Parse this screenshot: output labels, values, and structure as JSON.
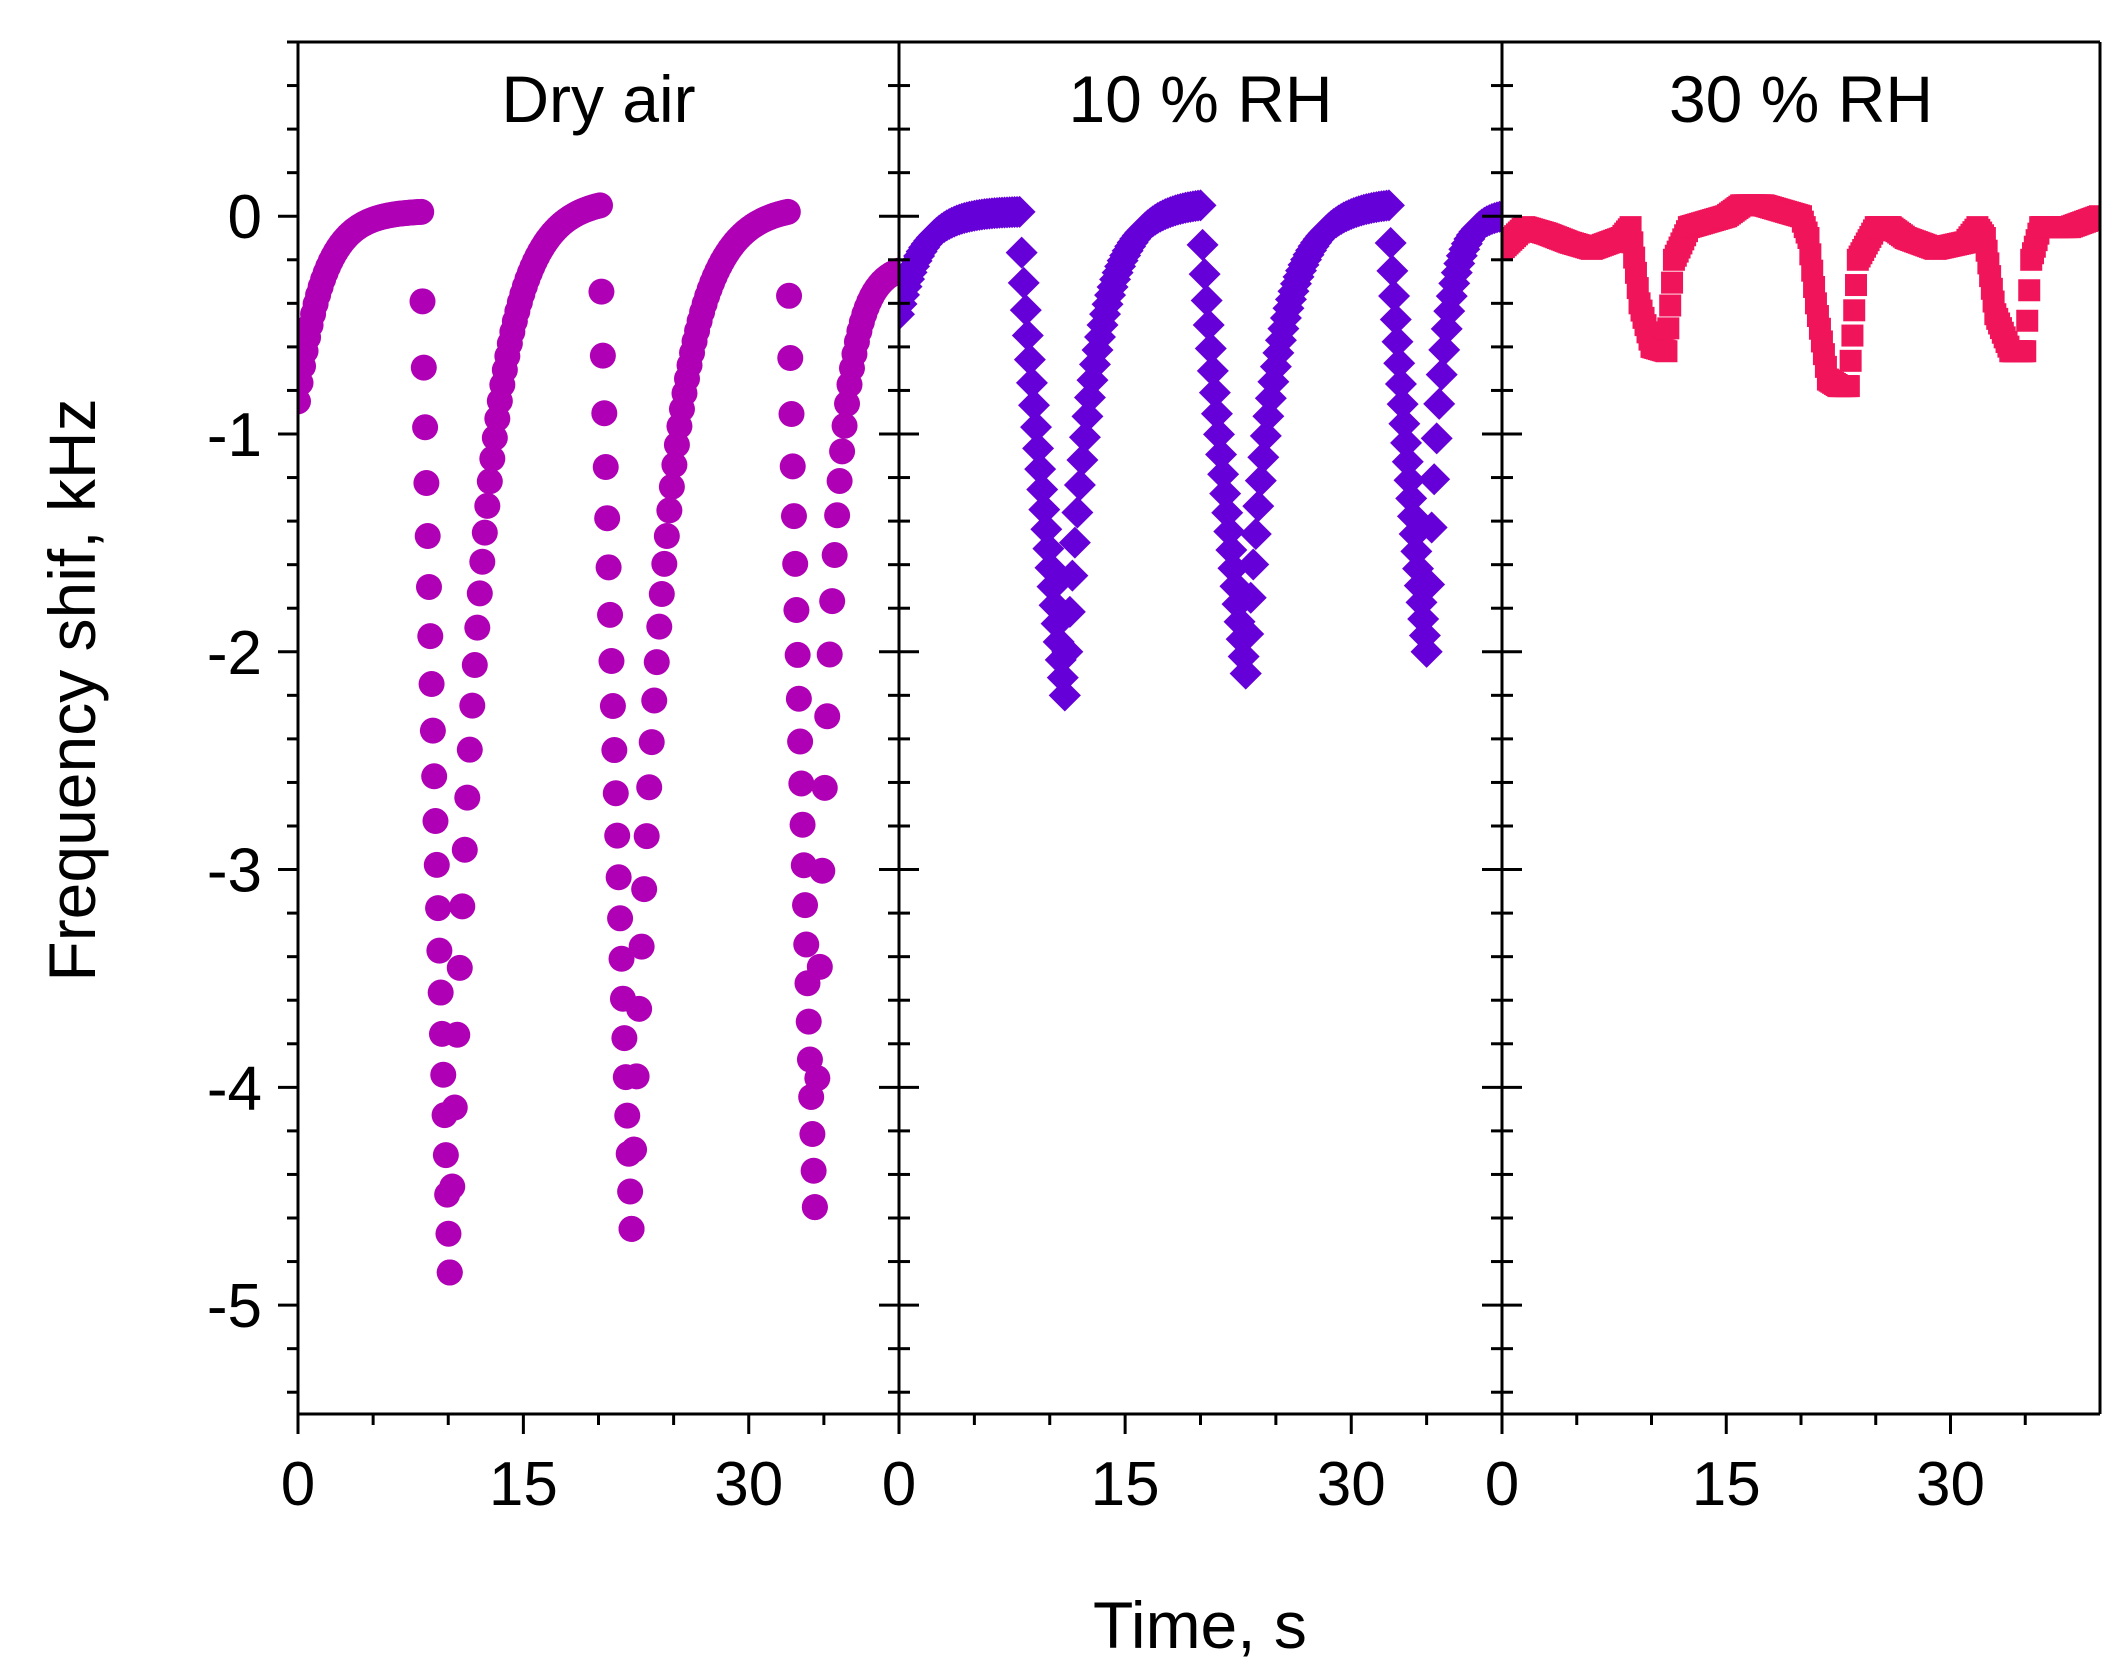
{
  "chart_data": {
    "type": "scatter",
    "xlabel": "Time, s",
    "ylabel": "Frequency shif, kHz",
    "ylim": [
      -5.5,
      0.8
    ],
    "yticks": [
      0,
      -1,
      -2,
      -3,
      -4,
      -5
    ],
    "ytick_labels": [
      "0",
      "-1",
      "-2",
      "-3",
      "-4",
      "-5"
    ],
    "panels": [
      {
        "title": "Dry air",
        "xlim": [
          0,
          40
        ],
        "xticks": [
          0,
          15,
          30
        ],
        "xtick_labels": [
          "0",
          "15",
          "30"
        ],
        "series": {
          "name": "Dry air",
          "marker": "circle",
          "color": "#B000B5",
          "cycles": [
            {
              "start": 0.0,
              "start_value": -0.85,
              "top_time": 8.2,
              "top_value": 0.02,
              "dip_time": 10.1,
              "dip_value": -4.85
            },
            {
              "start": 10.1,
              "start_value": -4.85,
              "top_time": 20.1,
              "top_value": 0.05,
              "dip_time": 22.2,
              "dip_value": -4.65
            },
            {
              "start": 22.2,
              "start_value": -4.65,
              "top_time": 32.6,
              "top_value": 0.02,
              "dip_time": 34.4,
              "dip_value": -4.55
            },
            {
              "start": 34.4,
              "start_value": -4.55,
              "top_time": 40.0,
              "top_value": -0.25
            }
          ]
        }
      },
      {
        "title": "10 % RH",
        "xlim": [
          0,
          40
        ],
        "xticks": [
          0,
          15,
          30
        ],
        "xtick_labels": [
          "0",
          "15",
          "30"
        ],
        "series": {
          "name": "10 % RH",
          "marker": "diamond",
          "color": "#6600D9",
          "cycles": [
            {
              "start": 0.0,
              "start_value": -0.45,
              "top_time": 8.0,
              "top_value": 0.02,
              "dip_time": 11.0,
              "dip_value": -2.2
            },
            {
              "start": 11.0,
              "start_value": -2.2,
              "top_time": 20.0,
              "top_value": 0.05,
              "dip_time": 23.0,
              "dip_value": -2.1
            },
            {
              "start": 23.0,
              "start_value": -2.1,
              "top_time": 32.5,
              "top_value": 0.05,
              "dip_time": 35.0,
              "dip_value": -2.0
            },
            {
              "start": 35.0,
              "start_value": -2.0,
              "top_time": 40.0,
              "top_value": 0.0
            }
          ]
        }
      },
      {
        "title": "30 % RH",
        "xlim": [
          0,
          40
        ],
        "xticks": [
          0,
          15,
          30
        ],
        "xtick_labels": [
          "0",
          "15",
          "30"
        ],
        "series": {
          "name": "30 % RH",
          "marker": "square",
          "color": "#F0145A",
          "points": [
            [
              0,
              -0.15
            ],
            [
              1.5,
              -0.05
            ],
            [
              3,
              -0.08
            ],
            [
              4.5,
              -0.12
            ],
            [
              6,
              -0.15
            ],
            [
              8,
              -0.1
            ],
            [
              8.6,
              -0.05
            ],
            [
              9.2,
              -0.4
            ],
            [
              10,
              -0.6
            ],
            [
              11,
              -0.62
            ],
            [
              11.5,
              -0.2
            ],
            [
              12.5,
              -0.05
            ],
            [
              15,
              0.0
            ],
            [
              16,
              0.05
            ],
            [
              17.5,
              0.05
            ],
            [
              19,
              0.02
            ],
            [
              20,
              0.0
            ],
            [
              20.5,
              -0.1
            ],
            [
              21,
              -0.4
            ],
            [
              21.8,
              -0.75
            ],
            [
              22.5,
              -0.78
            ],
            [
              23.2,
              -0.78
            ],
            [
              23.8,
              -0.2
            ],
            [
              25,
              -0.05
            ],
            [
              26,
              -0.05
            ],
            [
              27,
              -0.1
            ],
            [
              29,
              -0.15
            ],
            [
              31,
              -0.12
            ],
            [
              31.8,
              -0.05
            ],
            [
              32.3,
              -0.1
            ],
            [
              33,
              -0.45
            ],
            [
              34,
              -0.62
            ],
            [
              35,
              -0.62
            ],
            [
              35.4,
              -0.2
            ],
            [
              36,
              -0.05
            ],
            [
              38,
              -0.05
            ],
            [
              40,
              0.0
            ]
          ]
        }
      }
    ]
  }
}
